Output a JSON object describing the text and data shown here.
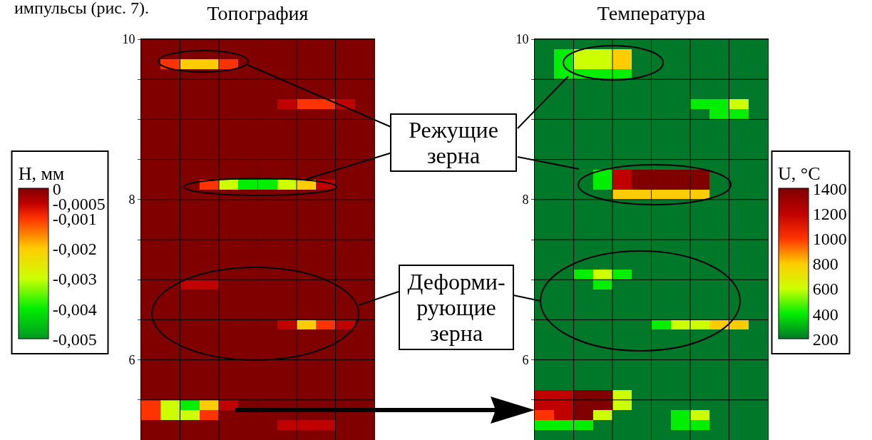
{
  "chart_data": [
    {
      "type": "heatmap",
      "title": "Топография",
      "clabel": "H, мм",
      "categories": [
        null,
        null,
        null,
        null,
        null,
        null,
        null,
        null,
        null,
        null,
        null,
        null
      ],
      "ylim": [
        5,
        10
      ],
      "yticks": [
        10,
        {
          "value": 9.5,
          "label": null
        },
        {
          "value": 9,
          "label": null
        },
        {
          "value": 8.5,
          "label": null
        },
        8,
        {
          "value": 7.5,
          "label": null
        },
        {
          "value": 7,
          "label": null
        },
        {
          "value": 6.5,
          "label": null
        },
        6,
        {
          "value": 5.5,
          "label": null
        }
      ],
      "grid": true,
      "tick_labels": "y",
      "clim": [
        -0.005,
        0
      ],
      "cticks": [
        0,
        {
          "value": -0.0005,
          "label": "-0,0005"
        },
        {
          "value": -0.001,
          "label": "-0,001"
        },
        {
          "value": -0.002,
          "label": "-0,002"
        },
        {
          "value": -0.003,
          "label": "-0,003"
        },
        {
          "value": -0.004,
          "label": "-0,004"
        },
        {
          "value": -0.005,
          "label": "-0,005"
        }
      ],
      "colors": [
        "#800000",
        "#c00000",
        "#ff3300",
        "#ffcc00",
        "#ccff00",
        "#00ee00",
        "#009922"
      ],
      "annotations": [
        "импульсы (рис. 7)."
      ],
      "cells": [
        [
          0,
          0,
          0,
          0,
          0,
          0,
          0,
          0,
          0,
          0,
          0,
          0
        ],
        [
          0,
          0,
          0,
          0,
          0,
          0,
          0,
          0,
          0,
          0,
          0,
          0
        ],
        [
          0,
          -0.001,
          -0.002,
          -0.002,
          -0.001,
          0,
          0,
          0,
          0,
          0,
          0,
          0
        ],
        [
          0,
          0,
          0,
          0,
          0,
          0,
          0,
          0,
          0,
          0,
          0,
          0
        ],
        [
          0,
          0,
          0,
          0,
          0,
          0,
          0,
          0,
          0,
          0,
          0,
          0
        ],
        [
          0,
          0,
          0,
          0,
          0,
          0,
          0,
          0,
          0,
          0,
          0,
          0
        ],
        [
          0,
          0,
          0,
          0,
          0,
          0,
          0,
          -0.0005,
          -0.001,
          -0.001,
          -0.0005,
          0
        ],
        [
          0,
          0,
          0,
          0,
          0,
          0,
          0,
          0,
          0,
          0,
          0,
          0
        ],
        [
          0,
          0,
          0,
          0,
          0,
          0,
          0,
          0,
          0,
          0,
          0,
          0
        ],
        [
          0,
          0,
          0,
          0,
          0,
          0,
          0,
          0,
          0,
          0,
          0,
          0
        ],
        [
          0,
          0,
          0,
          0,
          0,
          0,
          0,
          0,
          0,
          0,
          0,
          0
        ],
        [
          0,
          0,
          0,
          0,
          0,
          0,
          0,
          0,
          0,
          0,
          0,
          0
        ],
        [
          0,
          0,
          0,
          0,
          0,
          0,
          0,
          0,
          0,
          0,
          0,
          0
        ],
        [
          0,
          0,
          0,
          0,
          0,
          0,
          0,
          0,
          0,
          0,
          0,
          0
        ],
        [
          0,
          0,
          0,
          -0.001,
          -0.003,
          -0.004,
          -0.004,
          -0.003,
          -0.002,
          -0.0005,
          0,
          0
        ],
        [
          0,
          0,
          0,
          0,
          0,
          0,
          0,
          0,
          0,
          0,
          0,
          0
        ],
        [
          0,
          0,
          0,
          0,
          0,
          0,
          0,
          0,
          0,
          0,
          0,
          0
        ],
        [
          0,
          0,
          0,
          0,
          0,
          0,
          0,
          0,
          0,
          0,
          0,
          0
        ],
        [
          0,
          0,
          0,
          0,
          0,
          0,
          0,
          0,
          0,
          0,
          0,
          0
        ],
        [
          0,
          0,
          0,
          0,
          0,
          0,
          0,
          0,
          0,
          0,
          0,
          0
        ],
        [
          0,
          0,
          0,
          0,
          0,
          0,
          0,
          0,
          0,
          0,
          0,
          0
        ],
        [
          0,
          0,
          0,
          0,
          0,
          0,
          0,
          0,
          0,
          0,
          0,
          0
        ],
        [
          0,
          0,
          0,
          0,
          0,
          0,
          0,
          0,
          0,
          0,
          0,
          0
        ],
        [
          0,
          0,
          0,
          0,
          0,
          0,
          0,
          0,
          0,
          0,
          0,
          0
        ],
        [
          0,
          0,
          -0.0005,
          -0.0005,
          0,
          0,
          0,
          0,
          0,
          0,
          0,
          0
        ],
        [
          0,
          0,
          0,
          0,
          0,
          0,
          0,
          0,
          0,
          0,
          0,
          0
        ],
        [
          0,
          0,
          0,
          0,
          0,
          0,
          0,
          0,
          0,
          0,
          0,
          0
        ],
        [
          0,
          0,
          0,
          0,
          0,
          0,
          0,
          0,
          0,
          0,
          0,
          0
        ],
        [
          0,
          0,
          0,
          0,
          0,
          0,
          0,
          -0.0005,
          -0.002,
          -0.001,
          -0.0005,
          0
        ],
        [
          0,
          0,
          0,
          0,
          0,
          0,
          0,
          0,
          0,
          0,
          0,
          0
        ],
        [
          0,
          0,
          0,
          0,
          0,
          0,
          0,
          0,
          0,
          0,
          0,
          0
        ],
        [
          0,
          0,
          0,
          0,
          0,
          0,
          0,
          0,
          0,
          0,
          0,
          0
        ],
        [
          0,
          0,
          0,
          0,
          0,
          0,
          0,
          0,
          0,
          0,
          0,
          0
        ],
        [
          0,
          0,
          0,
          0,
          0,
          0,
          0,
          0,
          0,
          0,
          0,
          0
        ],
        [
          0,
          0,
          0,
          0,
          0,
          0,
          0,
          0,
          0,
          0,
          0,
          0
        ],
        [
          0,
          0,
          0,
          0,
          0,
          0,
          0,
          0,
          0,
          0,
          0,
          0
        ],
        [
          -0.001,
          -0.003,
          -0.004,
          -0.002,
          -0.0005,
          0,
          0,
          0,
          0,
          0,
          0,
          0
        ],
        [
          -0.001,
          -0.003,
          -0.003,
          -0.001,
          0,
          0,
          0,
          0,
          0,
          0,
          0,
          0
        ],
        [
          0,
          0,
          0,
          0,
          0,
          0,
          0,
          -0.0005,
          -0.0005,
          -0.0005,
          0,
          0
        ],
        [
          0,
          0,
          0,
          0,
          0,
          0,
          0,
          0,
          0,
          0,
          0,
          0
        ]
      ]
    },
    {
      "type": "heatmap",
      "title": "Температура",
      "clabel": "U, °C",
      "categories": [
        null,
        null,
        null,
        null,
        null,
        null,
        null,
        null,
        null,
        null,
        null,
        null
      ],
      "ylim": [
        5,
        10
      ],
      "yticks": [
        10,
        {
          "value": 9.5,
          "label": null
        },
        {
          "value": 9,
          "label": null
        },
        {
          "value": 8.5,
          "label": null
        },
        8,
        {
          "value": 7.5,
          "label": null
        },
        {
          "value": 7,
          "label": null
        },
        {
          "value": 6.5,
          "label": null
        },
        6,
        {
          "value": 5.5,
          "label": null
        }
      ],
      "grid": true,
      "tick_labels": "y",
      "clim": [
        200,
        1400
      ],
      "cticks": [
        1400,
        1200,
        1000,
        800,
        600,
        400,
        200
      ],
      "colors": [
        "#800000",
        "#c00000",
        "#ff3300",
        "#ffcc00",
        "#ccff00",
        "#00ee00",
        "#00782a"
      ],
      "annotations": [
        "Режущие\nзерна",
        "Деформи-\nрующие\nзерна"
      ],
      "cells": [
        [
          200,
          200,
          200,
          200,
          200,
          200,
          200,
          200,
          200,
          200,
          200,
          200
        ],
        [
          200,
          400,
          600,
          600,
          800,
          200,
          200,
          200,
          200,
          200,
          200,
          200
        ],
        [
          200,
          400,
          600,
          600,
          800,
          200,
          200,
          200,
          200,
          200,
          200,
          200
        ],
        [
          200,
          400,
          400,
          400,
          400,
          200,
          200,
          200,
          200,
          200,
          200,
          200
        ],
        [
          200,
          200,
          200,
          200,
          200,
          200,
          200,
          200,
          200,
          200,
          200,
          200
        ],
        [
          200,
          200,
          200,
          200,
          200,
          200,
          200,
          200,
          200,
          200,
          200,
          200
        ],
        [
          200,
          200,
          200,
          200,
          200,
          200,
          200,
          200,
          400,
          400,
          600,
          200
        ],
        [
          200,
          200,
          200,
          200,
          200,
          200,
          200,
          200,
          200,
          400,
          400,
          200
        ],
        [
          200,
          200,
          200,
          200,
          200,
          200,
          200,
          200,
          200,
          200,
          200,
          200
        ],
        [
          200,
          200,
          200,
          200,
          200,
          200,
          200,
          200,
          200,
          200,
          200,
          200
        ],
        [
          200,
          200,
          200,
          200,
          200,
          200,
          200,
          200,
          200,
          200,
          200,
          200
        ],
        [
          200,
          200,
          200,
          200,
          200,
          200,
          200,
          200,
          200,
          200,
          200,
          200
        ],
        [
          200,
          200,
          200,
          200,
          200,
          200,
          200,
          200,
          200,
          200,
          200,
          200
        ],
        [
          200,
          200,
          200,
          400,
          1200,
          1400,
          1400,
          1400,
          1400,
          200,
          200,
          200
        ],
        [
          200,
          200,
          200,
          400,
          1200,
          1400,
          1400,
          1400,
          1400,
          200,
          200,
          200
        ],
        [
          200,
          200,
          200,
          200,
          800,
          800,
          800,
          800,
          800,
          200,
          200,
          200
        ],
        [
          200,
          200,
          200,
          200,
          200,
          200,
          200,
          200,
          200,
          200,
          200,
          200
        ],
        [
          200,
          200,
          200,
          200,
          200,
          200,
          200,
          200,
          200,
          200,
          200,
          200
        ],
        [
          200,
          200,
          200,
          200,
          200,
          200,
          200,
          200,
          200,
          200,
          200,
          200
        ],
        [
          200,
          200,
          200,
          200,
          200,
          200,
          200,
          200,
          200,
          200,
          200,
          200
        ],
        [
          200,
          200,
          200,
          200,
          200,
          200,
          200,
          200,
          200,
          200,
          200,
          200
        ],
        [
          200,
          200,
          200,
          200,
          200,
          200,
          200,
          200,
          200,
          200,
          200,
          200
        ],
        [
          200,
          200,
          200,
          200,
          200,
          200,
          200,
          200,
          200,
          200,
          200,
          200
        ],
        [
          200,
          200,
          400,
          600,
          400,
          200,
          200,
          200,
          200,
          200,
          200,
          200
        ],
        [
          200,
          200,
          200,
          400,
          200,
          200,
          200,
          200,
          200,
          200,
          200,
          200
        ],
        [
          200,
          200,
          200,
          200,
          200,
          200,
          200,
          200,
          200,
          200,
          200,
          200
        ],
        [
          200,
          200,
          200,
          200,
          200,
          200,
          200,
          200,
          200,
          200,
          200,
          200
        ],
        [
          200,
          200,
          200,
          200,
          200,
          200,
          200,
          200,
          200,
          200,
          200,
          200
        ],
        [
          200,
          200,
          200,
          200,
          200,
          200,
          400,
          600,
          600,
          800,
          800,
          200
        ],
        [
          200,
          200,
          200,
          200,
          200,
          200,
          200,
          200,
          200,
          200,
          200,
          200
        ],
        [
          200,
          200,
          200,
          200,
          200,
          200,
          200,
          200,
          200,
          200,
          200,
          200
        ],
        [
          200,
          200,
          200,
          200,
          200,
          200,
          200,
          200,
          200,
          200,
          200,
          200
        ],
        [
          200,
          200,
          200,
          200,
          200,
          200,
          200,
          200,
          200,
          200,
          200,
          200
        ],
        [
          200,
          200,
          200,
          200,
          200,
          200,
          200,
          200,
          200,
          200,
          200,
          200
        ],
        [
          200,
          200,
          200,
          200,
          200,
          200,
          200,
          200,
          200,
          200,
          200,
          200
        ],
        [
          1200,
          1200,
          1400,
          1400,
          600,
          200,
          200,
          200,
          200,
          200,
          200,
          200
        ],
        [
          1200,
          1200,
          1400,
          1400,
          600,
          200,
          200,
          200,
          200,
          200,
          200,
          200
        ],
        [
          1000,
          1200,
          1400,
          600,
          200,
          200,
          200,
          400,
          600,
          200,
          200,
          200
        ],
        [
          400,
          400,
          400,
          200,
          200,
          200,
          200,
          400,
          400,
          200,
          200,
          200
        ],
        [
          200,
          200,
          200,
          200,
          200,
          200,
          200,
          200,
          200,
          200,
          200,
          200
        ]
      ]
    }
  ]
}
